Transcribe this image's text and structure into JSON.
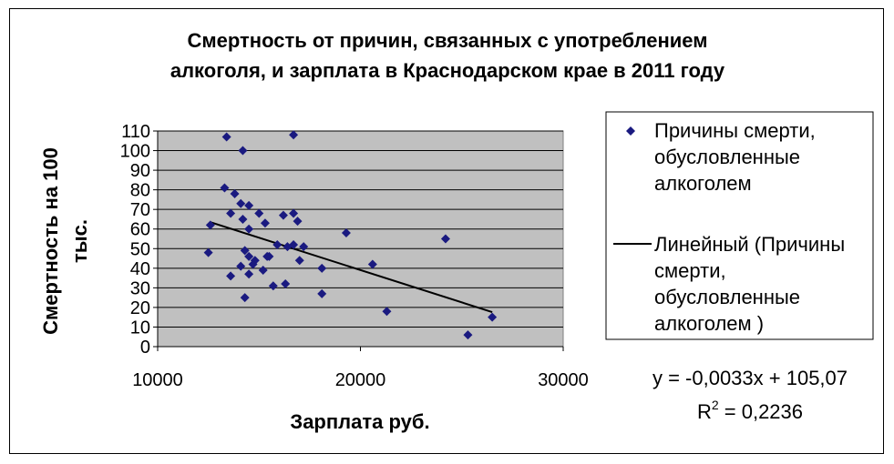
{
  "chart_data": {
    "type": "scatter",
    "title": [
      "Смертность от причин, связанных с употреблением",
      "алкоголя, и зарплата в Краснодарском крае в 2011 году"
    ],
    "xlabel": "Зарплата руб.",
    "ylabel": [
      "Смертность на 100",
      "тыс."
    ],
    "xlim": [
      10000,
      30000
    ],
    "ylim": [
      0,
      110
    ],
    "xticks": [
      10000,
      20000,
      30000
    ],
    "yticks": [
      0,
      10,
      20,
      30,
      40,
      50,
      60,
      70,
      80,
      90,
      100,
      110
    ],
    "grid": "horizontal",
    "legend_position": "right",
    "colors": {
      "marker": "#1a1a80",
      "plot_background": "#c0c0c0",
      "trend": "#000000"
    },
    "series": [
      {
        "name": [
          "Причины смерти,",
          "обусловленные",
          "алкоголем"
        ],
        "marker": "diamond",
        "points": [
          [
            13400,
            107
          ],
          [
            16700,
            108
          ],
          [
            14200,
            100
          ],
          [
            13300,
            81
          ],
          [
            13800,
            78
          ],
          [
            14100,
            73
          ],
          [
            14500,
            72
          ],
          [
            13600,
            68
          ],
          [
            15000,
            68
          ],
          [
            16200,
            67
          ],
          [
            16700,
            68
          ],
          [
            12600,
            62
          ],
          [
            14200,
            65
          ],
          [
            15300,
            63
          ],
          [
            16900,
            64
          ],
          [
            14500,
            60
          ],
          [
            19300,
            58
          ],
          [
            24200,
            55
          ],
          [
            15900,
            52
          ],
          [
            16400,
            51
          ],
          [
            16700,
            52
          ],
          [
            17200,
            51
          ],
          [
            12500,
            48
          ],
          [
            14300,
            49
          ],
          [
            14500,
            46
          ],
          [
            15400,
            46
          ],
          [
            15500,
            46
          ],
          [
            14800,
            44
          ],
          [
            14700,
            42
          ],
          [
            14100,
            41
          ],
          [
            15200,
            39
          ],
          [
            17000,
            44
          ],
          [
            18100,
            40
          ],
          [
            20600,
            42
          ],
          [
            13600,
            36
          ],
          [
            14500,
            37
          ],
          [
            15700,
            31
          ],
          [
            16300,
            32
          ],
          [
            14300,
            25
          ],
          [
            18100,
            27
          ],
          [
            21300,
            18
          ],
          [
            26500,
            15
          ],
          [
            25300,
            6
          ]
        ]
      }
    ],
    "trendline": {
      "name": [
        "Линейный (Причины",
        "смерти,",
        "обусловленные",
        "алкоголем )"
      ],
      "slope": -0.0033,
      "intercept": 105.07,
      "x_range": [
        12600,
        26500
      ],
      "equation": "y = -0,0033x + 105,07",
      "r2_label": "R",
      "r2_sup": "2",
      "r2_value": " = 0,2236"
    }
  }
}
